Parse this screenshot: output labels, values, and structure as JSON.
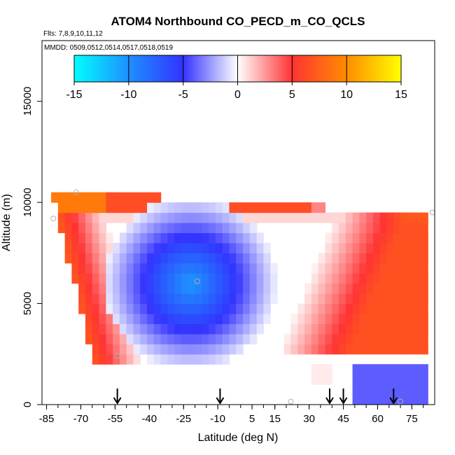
{
  "chart_data": {
    "type": "heatmap",
    "title": "ATOM4 Northbound CO_PECD_m_CO_QCLS",
    "subtitle_flights": "Flts: 7,8,9,10,11,12",
    "subtitle_dates": "MMDD: 0509,0512,0514,0517,0518,0519",
    "xlabel": "Latitude (deg N)",
    "ylabel": "Altitude (m)",
    "xlim": [
      -87,
      85
    ],
    "ylim": [
      0,
      18000
    ],
    "x_ticks": [
      -85,
      -70,
      -55,
      -40,
      -25,
      -10,
      5,
      15,
      30,
      45,
      60,
      75
    ],
    "x_tick_labels": [
      "-85",
      "-70",
      "-55",
      "-40",
      "-25",
      "-10",
      "5",
      "15",
      "30",
      "45",
      "60",
      "75"
    ],
    "y_ticks": [
      0,
      5000,
      10000,
      15000
    ],
    "y_tick_labels": [
      "0",
      "5000",
      "10000",
      "15000"
    ],
    "colorbar": {
      "min": -15,
      "max": 15,
      "ticks": [
        -15,
        -10,
        -5,
        0,
        5,
        10,
        15
      ],
      "tick_labels": [
        "-15",
        "-10",
        "-5",
        "0",
        "5",
        "10",
        "15"
      ],
      "color_stops": [
        {
          "value": -15,
          "color": "#00ffff"
        },
        {
          "value": -10,
          "color": "#1e90ff"
        },
        {
          "value": -5,
          "color": "#3333ff"
        },
        {
          "value": 0,
          "color": "#ffffff"
        },
        {
          "value": 5,
          "color": "#ff3333"
        },
        {
          "value": 10,
          "color": "#ff8c00"
        },
        {
          "value": 15,
          "color": "#ffff00"
        }
      ]
    },
    "profile_arrows_lat": [
      -54,
      -9,
      39,
      45,
      67
    ],
    "circle_markers": [
      {
        "lat": -72,
        "alt": 10500
      },
      {
        "lat": -82,
        "alt": 9200
      },
      {
        "lat": -19,
        "alt": 6100
      },
      {
        "lat": -54,
        "alt": 2400
      },
      {
        "lat": 22,
        "alt": 150
      },
      {
        "lat": 70,
        "alt": 150
      },
      {
        "lat": 84,
        "alt": 9500
      }
    ]
  }
}
